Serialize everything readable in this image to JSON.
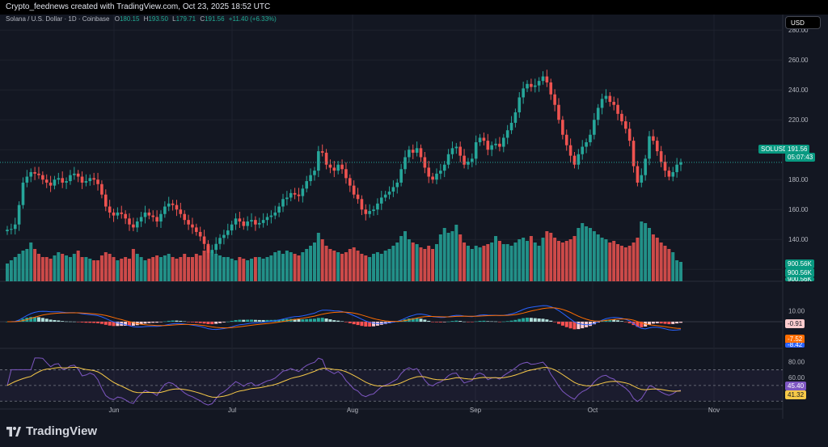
{
  "header": {
    "attribution": "Crypto_feednews created with TradingView.com, Oct 23, 2025 18:52 UTC"
  },
  "legend": {
    "symbol": "Solana / U.S. Dollar · 1D · Coinbase",
    "o_label": "O",
    "o_value": "180.15",
    "h_label": "H",
    "h_value": "193.50",
    "l_label": "L",
    "l_value": "179.71",
    "c_label": "C",
    "c_value": "191.56",
    "change": "+11.40 (+6.33%)"
  },
  "currency": "USD",
  "brand": "TradingView",
  "colors": {
    "up": "#26a69a",
    "down": "#ef5350",
    "macd": "#2962ff",
    "signal": "#ff6d00",
    "rsi": "#7e57c2",
    "rsi_ma": "#f7c948",
    "background": "#131722"
  },
  "badges": {
    "symbol_tag": "SOLUSD",
    "price": "191.56",
    "countdown": "05:07:43",
    "volume_1": "900.56K",
    "volume_2": "900.56K",
    "volume_3": "900.56K",
    "macd_hist": "-0.91",
    "macd_signal": "-7.52",
    "macd_line": "-8.42",
    "rsi_ma": "45.40",
    "rsi": "41.32"
  },
  "chart_data": {
    "type": "candlestick",
    "price_axis": {
      "ticks": [
        "280.00",
        "260.00",
        "240.00",
        "220.00",
        "200.00",
        "180.00",
        "160.00",
        "140.00",
        "120.00"
      ],
      "range": [
        112,
        285
      ]
    },
    "time_axis": {
      "ticks": [
        "Jun",
        "Jul",
        "Aug",
        "Sep",
        "Oct",
        "Nov"
      ]
    },
    "last_price": 191.56,
    "close": [
      146.5,
      147,
      150,
      163,
      178,
      182,
      185,
      184,
      183,
      180,
      178,
      176,
      180,
      181,
      178,
      179,
      183,
      184,
      182,
      178,
      179,
      181,
      180,
      177,
      170,
      162,
      158,
      156,
      158,
      157,
      154,
      150,
      148,
      152,
      155,
      158,
      156,
      155,
      152,
      157,
      162,
      164,
      163,
      160,
      157,
      153,
      150,
      148,
      145,
      142,
      137,
      131,
      133,
      137,
      141,
      143,
      146,
      150,
      154,
      152,
      149,
      152,
      153,
      150,
      151,
      153,
      155,
      156,
      158,
      162,
      167,
      168,
      171,
      170,
      169,
      174,
      179,
      183,
      186,
      199,
      198,
      190,
      188,
      186,
      190,
      187,
      181,
      176,
      170,
      167,
      160,
      157,
      159,
      160,
      164,
      168,
      170,
      172,
      175,
      178,
      187,
      195,
      200,
      198,
      201,
      195,
      188,
      182,
      180,
      184,
      186,
      190,
      197,
      201,
      202,
      196,
      190,
      192,
      194,
      205,
      208,
      206,
      200,
      203,
      204,
      202,
      208,
      213,
      218,
      225,
      235,
      241,
      244,
      242,
      243,
      246,
      249,
      245,
      237,
      230,
      220,
      210,
      203,
      196,
      190,
      197,
      202,
      205,
      210,
      220,
      228,
      234,
      236,
      232,
      230,
      224,
      219,
      214,
      206,
      189,
      178,
      183,
      194,
      209,
      206,
      199,
      192,
      186,
      182,
      185,
      190,
      191.56
    ],
    "volume": [
      22,
      26,
      30,
      34,
      38,
      40,
      48,
      40,
      34,
      30,
      30,
      28,
      32,
      36,
      34,
      32,
      30,
      34,
      38,
      30,
      30,
      28,
      26,
      26,
      32,
      36,
      34,
      30,
      26,
      28,
      30,
      28,
      40,
      34,
      30,
      26,
      28,
      30,
      32,
      30,
      32,
      34,
      30,
      28,
      30,
      34,
      30,
      30,
      34,
      32,
      38,
      44,
      36,
      34,
      32,
      30,
      30,
      28,
      26,
      30,
      28,
      26,
      28,
      30,
      30,
      28,
      30,
      32,
      36,
      38,
      34,
      38,
      36,
      34,
      32,
      36,
      40,
      44,
      48,
      60,
      52,
      44,
      40,
      38,
      36,
      34,
      36,
      40,
      42,
      38,
      34,
      32,
      30,
      34,
      36,
      34,
      38,
      40,
      44,
      48,
      56,
      62,
      52,
      48,
      46,
      42,
      40,
      44,
      40,
      46,
      58,
      66,
      60,
      62,
      70,
      58,
      48,
      44,
      40,
      44,
      42,
      44,
      46,
      48,
      56,
      50,
      46,
      46,
      44,
      48,
      52,
      54,
      50,
      56,
      48,
      44,
      54,
      62,
      60,
      54,
      50,
      48,
      50,
      52,
      56,
      66,
      72,
      68,
      66,
      62,
      58,
      54,
      52,
      48,
      50,
      46,
      44,
      42,
      44,
      48,
      54,
      74,
      72,
      66,
      58,
      54,
      48,
      44,
      40,
      36,
      26,
      24
    ]
  }
}
